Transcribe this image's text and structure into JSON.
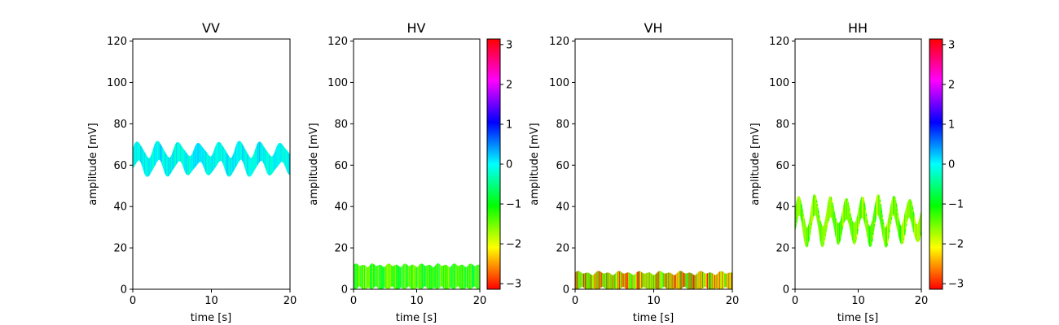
{
  "chart_data": [
    {
      "type": "area",
      "title": "VV",
      "xlabel": "time [s]",
      "ylabel": "amplitude [mV]",
      "xlim": [
        0,
        20
      ],
      "ylim": [
        0,
        121
      ],
      "xticks": [
        "0",
        "10",
        "20"
      ],
      "yticks": [
        "0",
        "20",
        "40",
        "60",
        "80",
        "100",
        "120"
      ],
      "colorbar": false,
      "band": {
        "phase": 0.0,
        "center": 63,
        "inner_osc": 3.5,
        "half_width": 4.5,
        "period_s": 2.6,
        "jitter": 0.6
      }
    },
    {
      "type": "area",
      "title": "HV",
      "xlabel": "time [s]",
      "ylabel": "amplitude [mV]",
      "xlim": [
        0,
        20
      ],
      "ylim": [
        0,
        121
      ],
      "xticks": [
        "0",
        "10",
        "20"
      ],
      "yticks": [
        "0",
        "20",
        "40",
        "60",
        "80",
        "100",
        "120"
      ],
      "colorbar": true,
      "band": {
        "phase": -1.2,
        "center": 6,
        "inner_osc": 0.4,
        "half_width": 5.5,
        "period_s": 2.6,
        "jitter": 1.5
      }
    },
    {
      "type": "area",
      "title": "VH",
      "xlabel": "time [s]",
      "ylabel": "amplitude [mV]",
      "xlim": [
        0,
        20
      ],
      "ylim": [
        0,
        121
      ],
      "xticks": [
        "0",
        "10",
        "20"
      ],
      "yticks": [
        "0",
        "20",
        "40",
        "60",
        "80",
        "100",
        "120"
      ],
      "colorbar": false,
      "band": {
        "phase": -2.0,
        "center": 4,
        "inner_osc": 0.5,
        "half_width": 3.8,
        "period_s": 2.6,
        "jitter": 2.5
      }
    },
    {
      "type": "area",
      "title": "HH",
      "xlabel": "time [s]",
      "ylabel": "amplitude [mV]",
      "xlim": [
        0,
        20
      ],
      "ylim": [
        0,
        121
      ],
      "xticks": [
        "0",
        "10",
        "20"
      ],
      "yticks": [
        "0",
        "20",
        "40",
        "60",
        "80",
        "100",
        "120"
      ],
      "colorbar": true,
      "band": {
        "phase": -1.5,
        "center": 33,
        "inner_osc": 7,
        "half_width": 4.5,
        "period_s": 2.5,
        "jitter": 1.2
      }
    }
  ],
  "colorbar": {
    "range": [
      -3.14,
      3.14
    ],
    "ticks": [
      "3",
      "2",
      "1",
      "0",
      "−1",
      "−2",
      "−3"
    ],
    "colors": [
      "#ff0000",
      "#ffff00",
      "#00ff00",
      "#00ffff",
      "#0000ff",
      "#ff00ff",
      "#ff0000"
    ]
  }
}
